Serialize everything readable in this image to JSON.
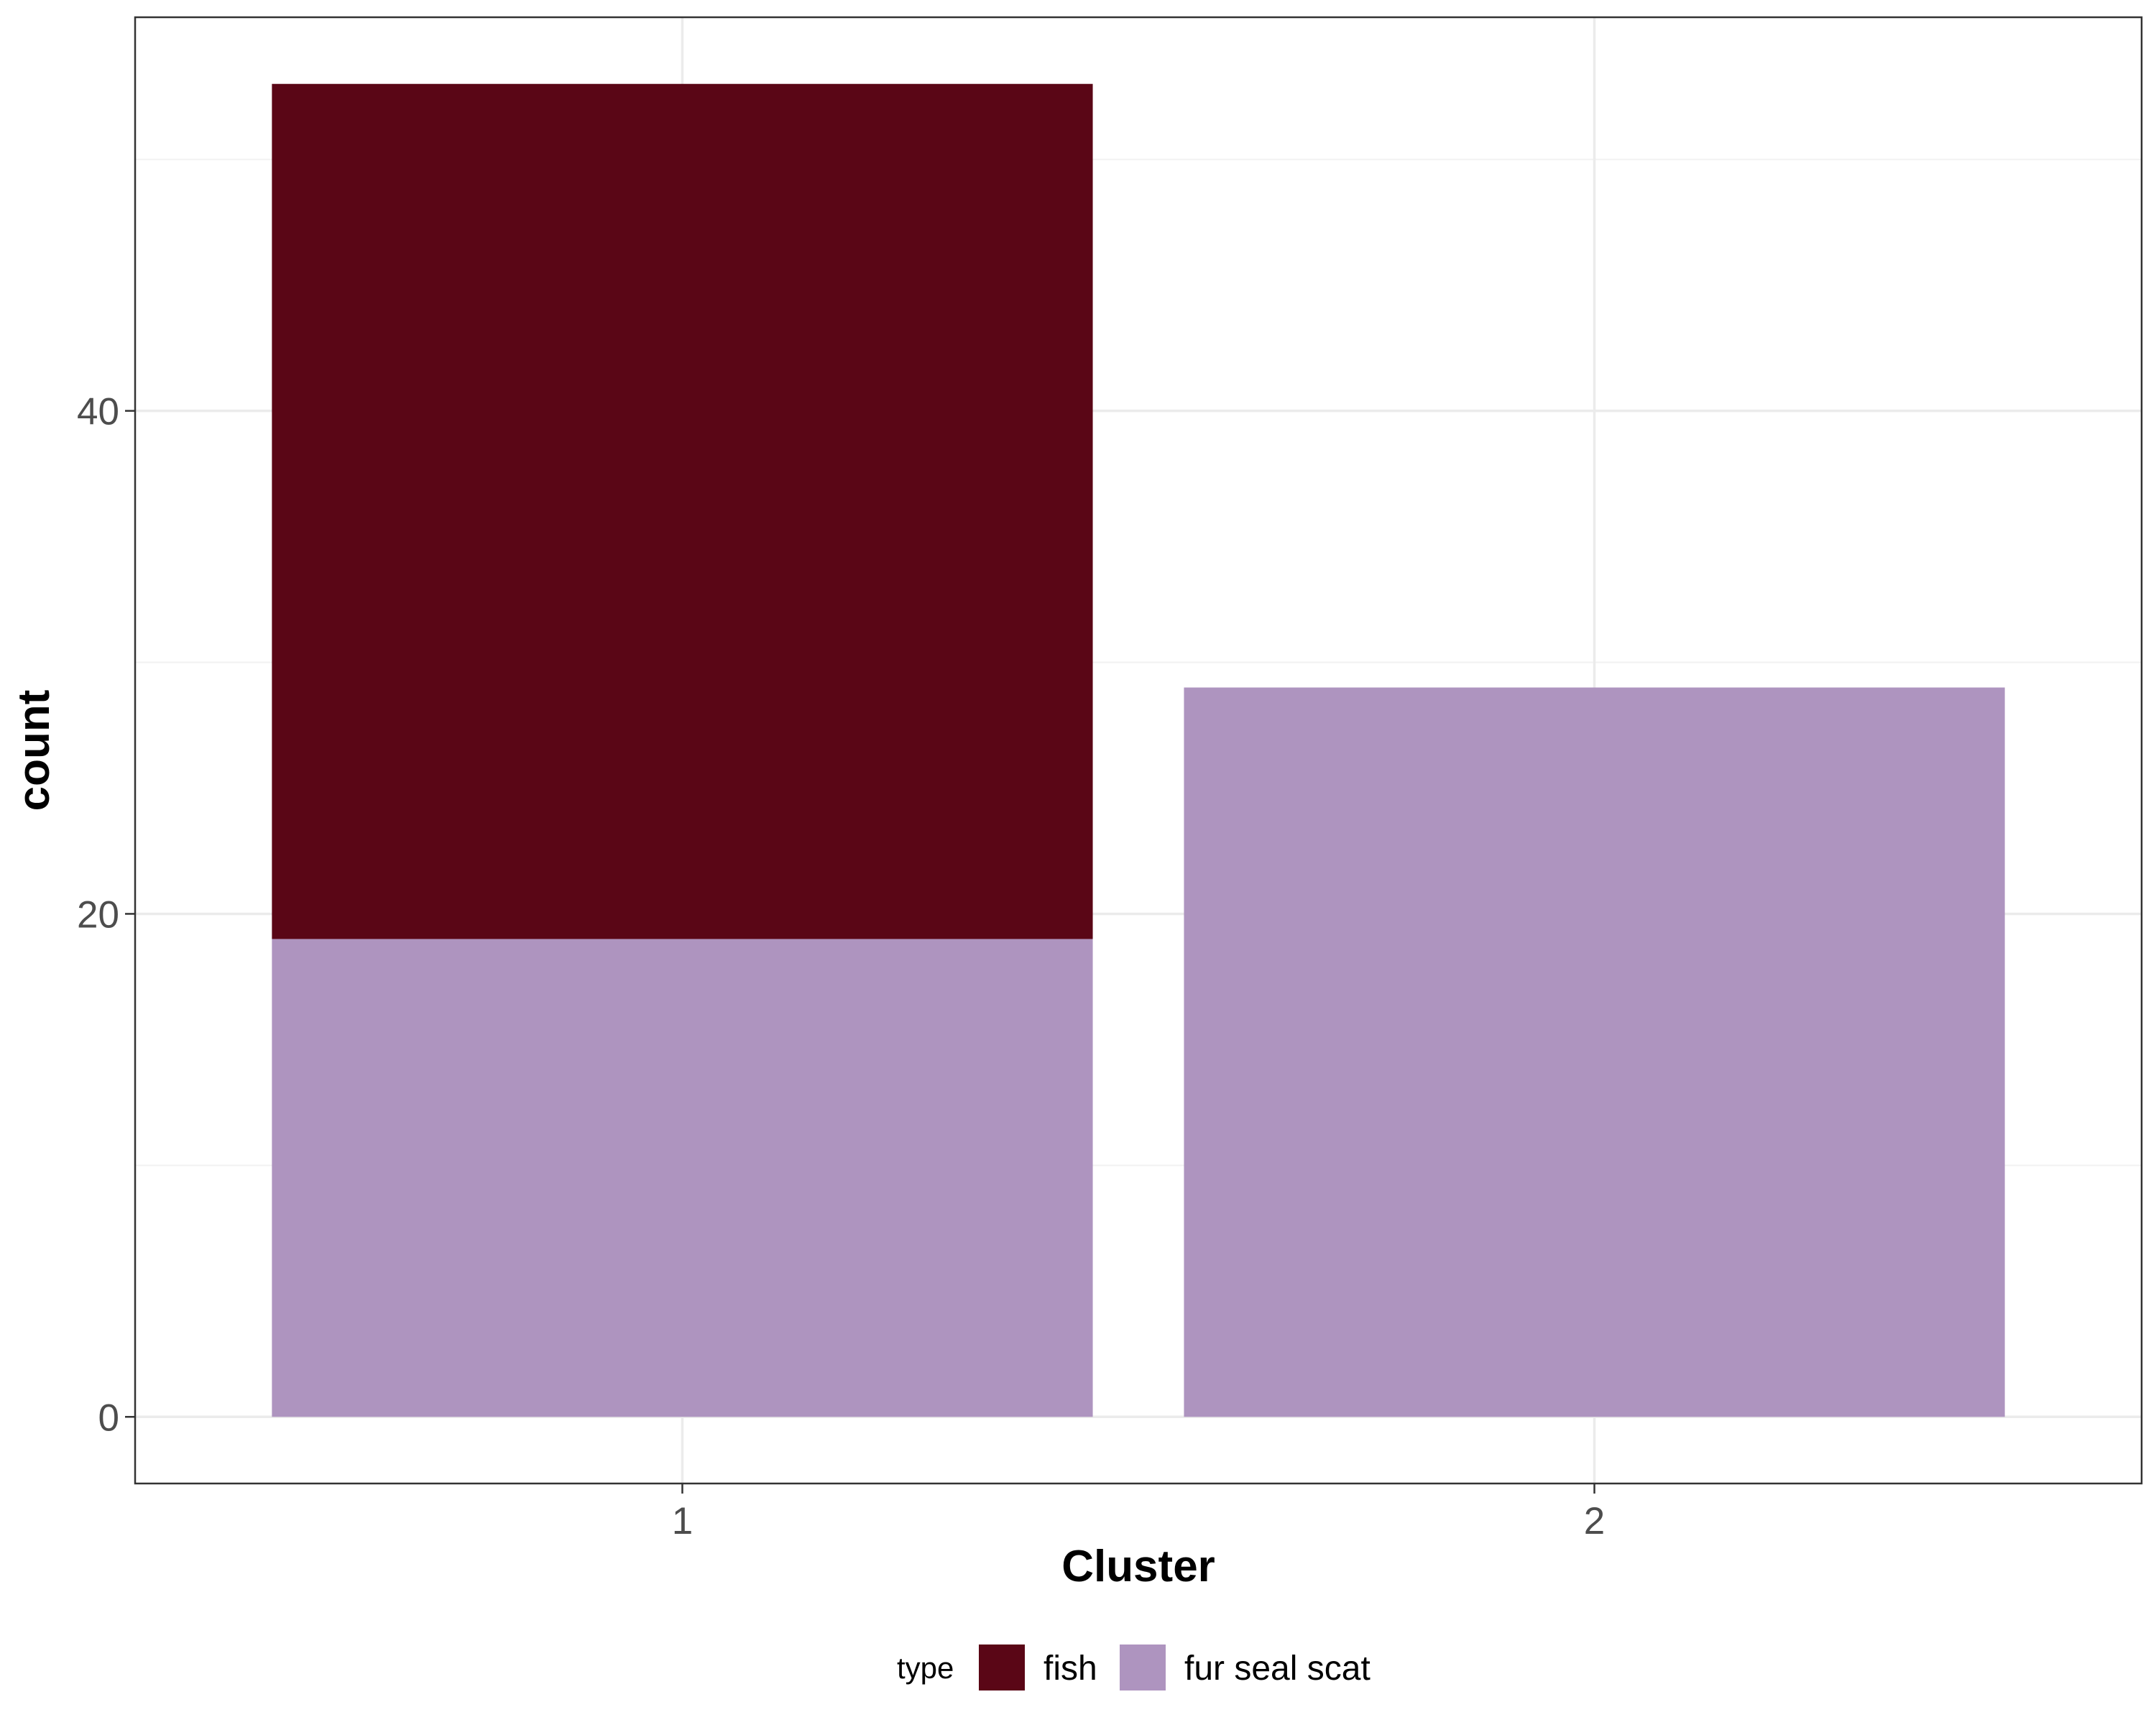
{
  "chart_data": {
    "type": "bar",
    "stacked": true,
    "categories": [
      "1",
      "2"
    ],
    "series": [
      {
        "name": "fur seal scat",
        "values": [
          19,
          29
        ],
        "color": "#AE94BF"
      },
      {
        "name": "fish",
        "values": [
          34,
          0
        ],
        "color": "#5A0616"
      }
    ],
    "xlabel": "Cluster",
    "ylabel": "count",
    "ylim": [
      -2.65,
      55.65
    ],
    "yticks": [
      0,
      20,
      40
    ],
    "ytick_labels": [
      "0",
      "20",
      "40"
    ],
    "grid": true,
    "legend": {
      "title": "type",
      "position": "bottom",
      "entries": [
        {
          "label": "fish",
          "color": "#5A0616"
        },
        {
          "label": "fur seal scat",
          "color": "#AE94BF"
        }
      ]
    }
  }
}
